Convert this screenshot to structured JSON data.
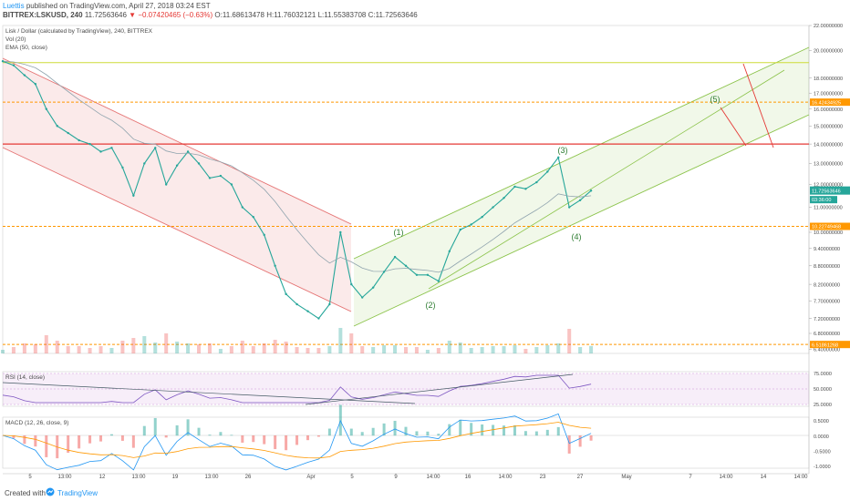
{
  "header": {
    "author": "Luettis",
    "published": "published on TradingView.com, April 27, 2018 03:24 EST",
    "symbol_line": "BITTREX:LSKUSD, 240",
    "last": "11.72563646",
    "change": "▼ −0.07420465 (−0.63%)",
    "o": "O:11.68613478",
    "h": "H:11.76032121",
    "lo": "L:11.55383708",
    "c": "C:11.72563646"
  },
  "legend": {
    "title": "Lisk / Dollar (calculated by TradingView), 240, BITTREX",
    "vol": "Vol (20)",
    "ema": "EMA (50, close)"
  },
  "price_axis": {
    "ticks": [
      "22.00000000",
      "20.00000000",
      "18.00000000",
      "17.00000000",
      "16.00000000",
      "15.00000000",
      "14.00000000",
      "13.00000000",
      "12.00000000",
      "11.00000000",
      "10.00000000",
      "9.40000000",
      "8.80000000",
      "8.20000000",
      "7.70000000",
      "7.20000000",
      "6.80000000",
      "6.40000000"
    ],
    "last_label": "11.72563646",
    "countdown": "03:36:00",
    "level_labels": [
      "16.42434925",
      "10.22749468",
      "6.51861268"
    ]
  },
  "rsi": {
    "label": "RSI (14, close)",
    "ticks": [
      "75.0000",
      "50.0000",
      "25.0000"
    ]
  },
  "macd": {
    "label": "MACD (12, 26, close, 9)",
    "ticks": [
      "0.5000",
      "0.0000",
      "-0.5000",
      "-1.0000"
    ]
  },
  "time_axis": {
    "labels": [
      "5",
      "13:00",
      "12",
      "13:00",
      "19",
      "13:00",
      "26",
      "Apr",
      "5",
      "9",
      "14:00",
      "16",
      "14:00",
      "23",
      "27",
      "May",
      "7",
      "14:00",
      "14",
      "14:00"
    ]
  },
  "waves": [
    "(1)",
    "(2)",
    "(3)",
    "(4)",
    "(5)"
  ],
  "footer": {
    "created": "Created with",
    "brand": "TradingView"
  },
  "chart_data": {
    "type": "line",
    "title": "Lisk / Dollar (calculated by TradingView), 240, BITTREX",
    "y_scale": "log",
    "ylim": [
      6.3,
      22
    ],
    "x_range": [
      "Mar 4 2018",
      "May 17 2018"
    ],
    "series": [
      {
        "name": "LSKUSD",
        "x": [
          "Mar 4",
          "Mar 5",
          "Mar 6",
          "Mar 7",
          "Mar 8",
          "Mar 9",
          "Mar 10",
          "Mar 11",
          "Mar 12",
          "Mar 13",
          "Mar 14",
          "Mar 15",
          "Mar 16",
          "Mar 17",
          "Mar 18",
          "Mar 19",
          "Mar 20",
          "Mar 21",
          "Mar 22",
          "Mar 23",
          "Mar 24",
          "Mar 25",
          "Mar 26",
          "Mar 27",
          "Mar 28",
          "Mar 29",
          "Mar 30",
          "Mar 31",
          "Apr 1",
          "Apr 2",
          "Apr 3",
          "Apr 4",
          "Apr 5",
          "Apr 6",
          "Apr 7",
          "Apr 8",
          "Apr 9",
          "Apr 10",
          "Apr 11",
          "Apr 12",
          "Apr 13",
          "Apr 14",
          "Apr 15",
          "Apr 16",
          "Apr 17",
          "Apr 18",
          "Apr 19",
          "Apr 20",
          "Apr 21",
          "Apr 22",
          "Apr 23",
          "Apr 24",
          "Apr 25",
          "Apr 26",
          "Apr 27"
        ],
        "values": [
          19.2,
          18.9,
          18.2,
          17.6,
          16.0,
          15.0,
          14.6,
          14.2,
          14.0,
          13.6,
          13.8,
          12.8,
          11.5,
          13.0,
          13.8,
          12.0,
          12.9,
          13.6,
          13.0,
          12.3,
          12.4,
          12.0,
          11.0,
          10.6,
          9.9,
          8.8,
          7.9,
          7.6,
          7.4,
          7.2,
          7.6,
          10.0,
          8.2,
          7.8,
          8.1,
          8.6,
          9.1,
          8.8,
          8.5,
          8.5,
          8.3,
          9.3,
          10.1,
          10.3,
          10.6,
          11.0,
          11.4,
          11.9,
          11.8,
          12.1,
          12.6,
          13.3,
          11.0,
          11.3,
          11.72
        ]
      }
    ],
    "horizontal_levels": [
      19.1,
      16.42434925,
      14.0,
      10.22749468,
      6.51861268
    ],
    "rsi_range": [
      25,
      75
    ],
    "macd_range": [
      -1.0,
      0.5
    ]
  }
}
